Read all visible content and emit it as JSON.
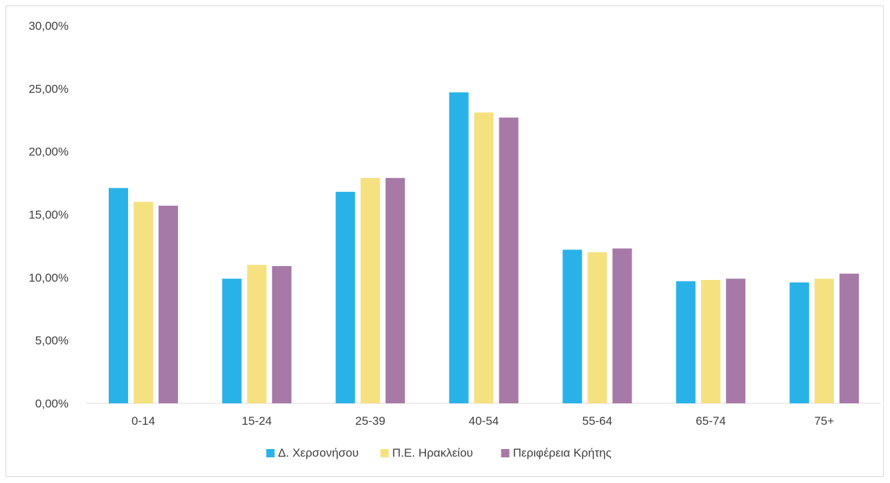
{
  "chart_data": {
    "type": "bar",
    "title": "",
    "xlabel": "",
    "ylabel": "",
    "categories": [
      "0-14",
      "15-24",
      "25-39",
      "40-54",
      "55-64",
      "65-74",
      "75+"
    ],
    "series": [
      {
        "name": "Δ. Χερσονήσου",
        "color": "#29b2e8",
        "values": [
          17.1,
          9.9,
          16.8,
          24.7,
          12.2,
          9.7,
          9.6
        ]
      },
      {
        "name": "Π.Ε. Ηρακλείου",
        "color": "#f5e17f",
        "values": [
          16.0,
          11.0,
          17.9,
          23.1,
          12.0,
          9.8,
          9.9
        ]
      },
      {
        "name": "Περιφέρεια Κρήτης",
        "color": "#a779a7",
        "values": [
          15.7,
          10.9,
          17.9,
          22.7,
          12.3,
          9.9,
          10.3
        ]
      }
    ],
    "ylim": [
      0,
      30
    ],
    "yticks": [
      0,
      5,
      10,
      15,
      20,
      25,
      30
    ],
    "ytick_labels": [
      "0,00%",
      "5,00%",
      "10,00%",
      "15,00%",
      "20,00%",
      "25,00%",
      "30,00%"
    ],
    "grid": false,
    "legend_position": "bottom"
  }
}
